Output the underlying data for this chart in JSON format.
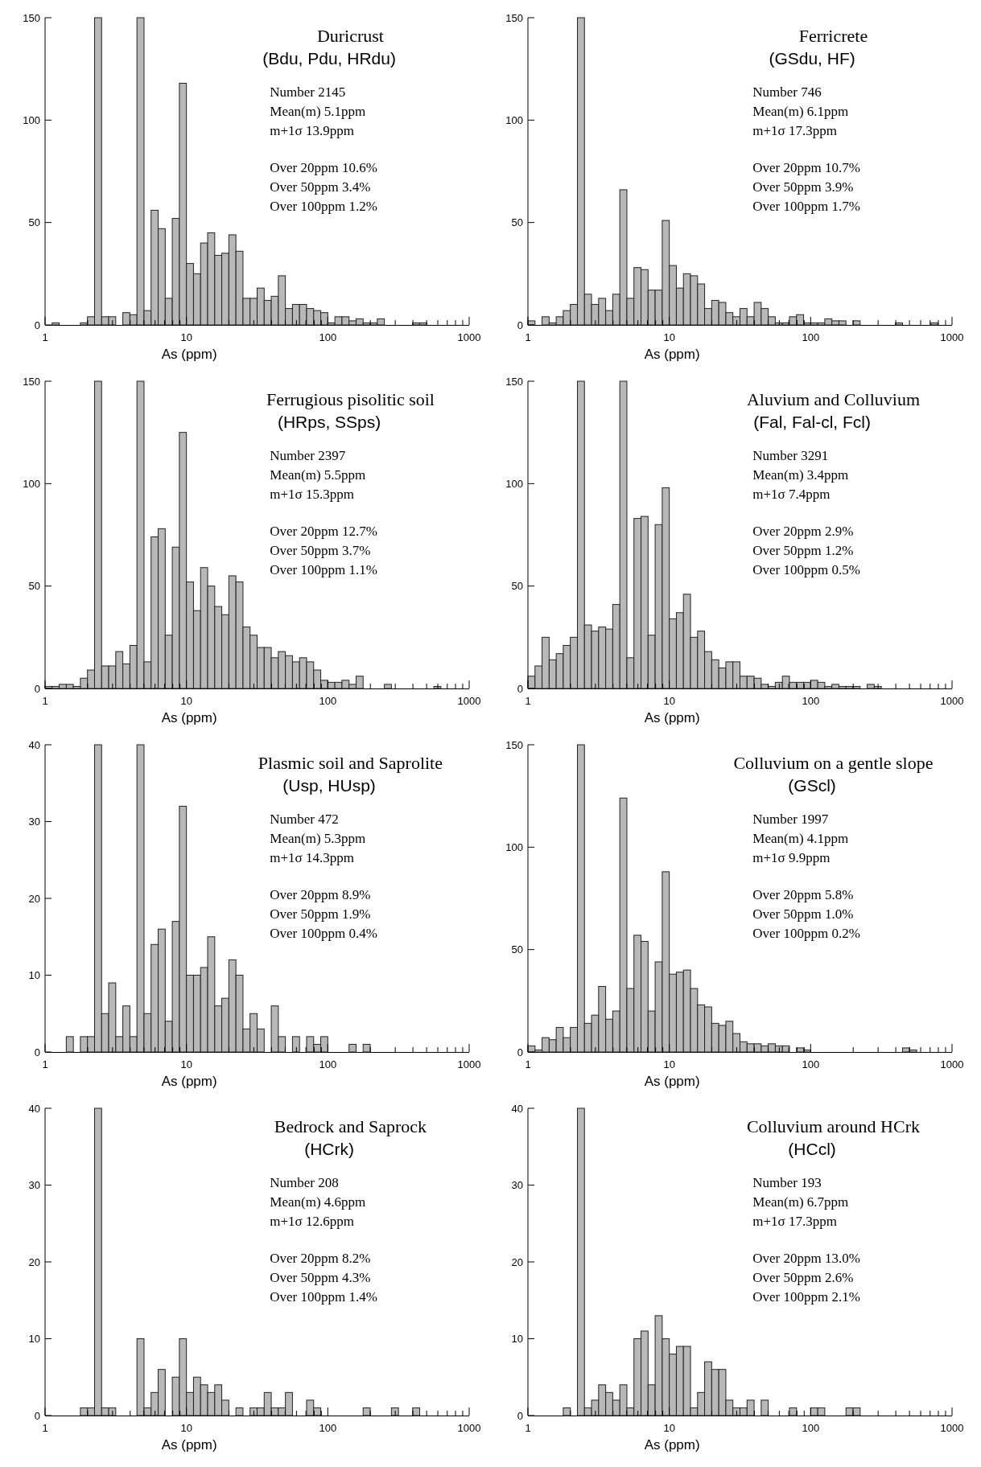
{
  "chart_data": [
    {
      "type": "histogram",
      "title": "Duricrust",
      "subtitle": "(Bdu, Pdu, HRdu)",
      "xlabel": "As (ppm)",
      "log": "x",
      "color": "#b8b8b8",
      "xlim": [
        1,
        1000
      ],
      "ylim": [
        0,
        150
      ],
      "yticks": [
        0,
        50,
        100,
        150
      ],
      "xticks": [
        1,
        {
          "value": 2,
          "label": null
        },
        {
          "value": 3,
          "label": null
        },
        {
          "value": 4,
          "label": null
        },
        {
          "value": 5,
          "label": null
        },
        {
          "value": 6,
          "label": null
        },
        {
          "value": 7,
          "label": null
        },
        {
          "value": 8,
          "label": null
        },
        {
          "value": 9,
          "label": null
        },
        10,
        {
          "value": 20,
          "label": null
        },
        {
          "value": 30,
          "label": null
        },
        {
          "value": 40,
          "label": null
        },
        {
          "value": 50,
          "label": null
        },
        {
          "value": 60,
          "label": null
        },
        {
          "value": 70,
          "label": null
        },
        {
          "value": 80,
          "label": null
        },
        {
          "value": 90,
          "label": null
        },
        100,
        {
          "value": 200,
          "label": null
        },
        {
          "value": 300,
          "label": null
        },
        {
          "value": 400,
          "label": null
        },
        {
          "value": 500,
          "label": null
        },
        {
          "value": 600,
          "label": null
        },
        {
          "value": 700,
          "label": null
        },
        {
          "value": 800,
          "label": null
        },
        {
          "value": 900,
          "label": null
        },
        1000
      ],
      "annotations": [
        "Number 2145",
        "Mean(m) 5.1ppm",
        "m+1σ 13.9ppm",
        "Over 20ppm 10.6%",
        "Over 50ppm 3.4%",
        "Over 100ppm 1.2%"
      ],
      "bins": [
        1,
        1.122,
        1.259,
        1.413,
        1.585,
        1.778,
        1.995,
        2.239,
        2.512,
        2.818,
        3.162,
        3.548,
        3.981,
        4.467,
        5.012,
        5.623,
        6.31,
        7.079,
        7.943,
        8.913,
        10,
        11.22,
        12.59,
        14.13,
        15.85,
        17.78,
        19.95,
        22.39,
        25.12,
        28.18,
        31.62,
        35.48,
        39.81,
        44.67,
        50.12,
        56.23,
        63.1,
        70.79,
        79.43,
        89.13,
        100,
        112.2,
        125.9,
        141.3,
        158.5,
        177.8,
        199.5,
        223.9,
        251.2,
        281.8,
        316.2,
        354.8,
        398.1,
        446.7,
        501.2,
        562.3,
        631,
        707.9,
        794.3,
        891.3,
        1000
      ],
      "values": [
        0,
        1,
        0,
        0,
        0,
        1,
        4,
        150,
        4,
        4,
        0,
        6,
        5,
        150,
        7,
        56,
        47,
        13,
        52,
        118,
        30,
        25,
        40,
        45,
        34,
        35,
        44,
        36,
        13,
        13,
        18,
        12,
        14,
        24,
        8,
        10,
        10,
        8,
        7,
        6,
        1,
        4,
        4,
        2,
        3,
        1,
        1,
        3,
        0,
        0,
        0,
        0,
        1,
        1,
        0,
        0,
        0,
        0,
        0,
        0
      ]
    },
    {
      "type": "histogram",
      "title": "Ferricrete",
      "subtitle": "(GSdu, HF)",
      "xlabel": "As (ppm)",
      "log": "x",
      "color": "#b8b8b8",
      "xlim": [
        1,
        1000
      ],
      "ylim": [
        0,
        150
      ],
      "yticks": [
        0,
        50,
        100,
        150
      ],
      "xticks": [
        1,
        {
          "value": 2,
          "label": null
        },
        {
          "value": 3,
          "label": null
        },
        {
          "value": 4,
          "label": null
        },
        {
          "value": 5,
          "label": null
        },
        {
          "value": 6,
          "label": null
        },
        {
          "value": 7,
          "label": null
        },
        {
          "value": 8,
          "label": null
        },
        {
          "value": 9,
          "label": null
        },
        10,
        {
          "value": 20,
          "label": null
        },
        {
          "value": 30,
          "label": null
        },
        {
          "value": 40,
          "label": null
        },
        {
          "value": 50,
          "label": null
        },
        {
          "value": 60,
          "label": null
        },
        {
          "value": 70,
          "label": null
        },
        {
          "value": 80,
          "label": null
        },
        {
          "value": 90,
          "label": null
        },
        100,
        {
          "value": 200,
          "label": null
        },
        {
          "value": 300,
          "label": null
        },
        {
          "value": 400,
          "label": null
        },
        {
          "value": 500,
          "label": null
        },
        {
          "value": 600,
          "label": null
        },
        {
          "value": 700,
          "label": null
        },
        {
          "value": 800,
          "label": null
        },
        {
          "value": 900,
          "label": null
        },
        1000
      ],
      "annotations": [
        "Number 746",
        "Mean(m) 6.1ppm",
        "m+1σ 17.3ppm",
        "Over 20ppm 10.7%",
        "Over 50ppm 3.9%",
        "Over 100ppm 1.7%"
      ],
      "bins": [
        1,
        1.122,
        1.259,
        1.413,
        1.585,
        1.778,
        1.995,
        2.239,
        2.512,
        2.818,
        3.162,
        3.548,
        3.981,
        4.467,
        5.012,
        5.623,
        6.31,
        7.079,
        7.943,
        8.913,
        10,
        11.22,
        12.59,
        14.13,
        15.85,
        17.78,
        19.95,
        22.39,
        25.12,
        28.18,
        31.62,
        35.48,
        39.81,
        44.67,
        50.12,
        56.23,
        63.1,
        70.79,
        79.43,
        89.13,
        100,
        112.2,
        125.9,
        141.3,
        158.5,
        177.8,
        199.5,
        223.9,
        251.2,
        281.8,
        316.2,
        354.8,
        398.1,
        446.7,
        501.2,
        562.3,
        631,
        707.9,
        794.3,
        891.3,
        1000
      ],
      "values": [
        2,
        0,
        4,
        1,
        4,
        7,
        10,
        150,
        15,
        10,
        13,
        7,
        15,
        66,
        13,
        28,
        27,
        17,
        17,
        51,
        29,
        18,
        25,
        24,
        20,
        8,
        12,
        11,
        6,
        4,
        8,
        4,
        11,
        8,
        4,
        1,
        1,
        4,
        5,
        1,
        1,
        1,
        3,
        2,
        2,
        0,
        2,
        0,
        0,
        0,
        0,
        0,
        1,
        0,
        0,
        0,
        0,
        1,
        0,
        0
      ]
    },
    {
      "type": "histogram",
      "title": "Ferrugious pisolitic soil",
      "subtitle": "(HRps, SSps)",
      "xlabel": "As (ppm)",
      "log": "x",
      "color": "#b8b8b8",
      "xlim": [
        1,
        1000
      ],
      "ylim": [
        0,
        150
      ],
      "yticks": [
        0,
        50,
        100,
        150
      ],
      "xticks": [
        1,
        {
          "value": 2,
          "label": null
        },
        {
          "value": 3,
          "label": null
        },
        {
          "value": 4,
          "label": null
        },
        {
          "value": 5,
          "label": null
        },
        {
          "value": 6,
          "label": null
        },
        {
          "value": 7,
          "label": null
        },
        {
          "value": 8,
          "label": null
        },
        {
          "value": 9,
          "label": null
        },
        10,
        {
          "value": 20,
          "label": null
        },
        {
          "value": 30,
          "label": null
        },
        {
          "value": 40,
          "label": null
        },
        {
          "value": 50,
          "label": null
        },
        {
          "value": 60,
          "label": null
        },
        {
          "value": 70,
          "label": null
        },
        {
          "value": 80,
          "label": null
        },
        {
          "value": 90,
          "label": null
        },
        100,
        {
          "value": 200,
          "label": null
        },
        {
          "value": 300,
          "label": null
        },
        {
          "value": 400,
          "label": null
        },
        {
          "value": 500,
          "label": null
        },
        {
          "value": 600,
          "label": null
        },
        {
          "value": 700,
          "label": null
        },
        {
          "value": 800,
          "label": null
        },
        {
          "value": 900,
          "label": null
        },
        1000
      ],
      "annotations": [
        "Number 2397",
        "Mean(m) 5.5ppm",
        "m+1σ 15.3ppm",
        "Over 20ppm 12.7%",
        "Over 50ppm 3.7%",
        "Over 100ppm 1.1%"
      ],
      "bins": [
        1,
        1.122,
        1.259,
        1.413,
        1.585,
        1.778,
        1.995,
        2.239,
        2.512,
        2.818,
        3.162,
        3.548,
        3.981,
        4.467,
        5.012,
        5.623,
        6.31,
        7.079,
        7.943,
        8.913,
        10,
        11.22,
        12.59,
        14.13,
        15.85,
        17.78,
        19.95,
        22.39,
        25.12,
        28.18,
        31.62,
        35.48,
        39.81,
        44.67,
        50.12,
        56.23,
        63.1,
        70.79,
        79.43,
        89.13,
        100,
        112.2,
        125.9,
        141.3,
        158.5,
        177.8,
        199.5,
        223.9,
        251.2,
        281.8,
        316.2,
        354.8,
        398.1,
        446.7,
        501.2,
        562.3,
        631,
        707.9,
        794.3,
        891.3,
        1000
      ],
      "values": [
        1,
        1,
        2,
        2,
        1,
        5,
        9,
        150,
        11,
        11,
        18,
        12,
        21,
        150,
        13,
        74,
        78,
        26,
        69,
        125,
        52,
        38,
        59,
        50,
        40,
        36,
        55,
        52,
        30,
        26,
        20,
        20,
        15,
        18,
        16,
        13,
        15,
        13,
        9,
        4,
        3,
        3,
        4,
        2,
        6,
        0,
        0,
        0,
        2,
        0,
        0,
        0,
        0,
        0,
        0,
        1,
        0,
        0,
        0,
        0
      ]
    },
    {
      "type": "histogram",
      "title": "Aluvium and Colluvium",
      "subtitle": "(Fal, Fal-cl, Fcl)",
      "xlabel": "As (ppm)",
      "log": "x",
      "color": "#b8b8b8",
      "xlim": [
        1,
        1000
      ],
      "ylim": [
        0,
        150
      ],
      "yticks": [
        0,
        50,
        100,
        150
      ],
      "xticks": [
        1,
        {
          "value": 2,
          "label": null
        },
        {
          "value": 3,
          "label": null
        },
        {
          "value": 4,
          "label": null
        },
        {
          "value": 5,
          "label": null
        },
        {
          "value": 6,
          "label": null
        },
        {
          "value": 7,
          "label": null
        },
        {
          "value": 8,
          "label": null
        },
        {
          "value": 9,
          "label": null
        },
        10,
        {
          "value": 20,
          "label": null
        },
        {
          "value": 30,
          "label": null
        },
        {
          "value": 40,
          "label": null
        },
        {
          "value": 50,
          "label": null
        },
        {
          "value": 60,
          "label": null
        },
        {
          "value": 70,
          "label": null
        },
        {
          "value": 80,
          "label": null
        },
        {
          "value": 90,
          "label": null
        },
        100,
        {
          "value": 200,
          "label": null
        },
        {
          "value": 300,
          "label": null
        },
        {
          "value": 400,
          "label": null
        },
        {
          "value": 500,
          "label": null
        },
        {
          "value": 600,
          "label": null
        },
        {
          "value": 700,
          "label": null
        },
        {
          "value": 800,
          "label": null
        },
        {
          "value": 900,
          "label": null
        },
        1000
      ],
      "annotations": [
        "Number 3291",
        "Mean(m) 3.4ppm",
        "m+1σ 7.4ppm",
        "Over 20ppm 2.9%",
        "Over 50ppm 1.2%",
        "Over 100ppm 0.5%"
      ],
      "bins": [
        1,
        1.122,
        1.259,
        1.413,
        1.585,
        1.778,
        1.995,
        2.239,
        2.512,
        2.818,
        3.162,
        3.548,
        3.981,
        4.467,
        5.012,
        5.623,
        6.31,
        7.079,
        7.943,
        8.913,
        10,
        11.22,
        12.59,
        14.13,
        15.85,
        17.78,
        19.95,
        22.39,
        25.12,
        28.18,
        31.62,
        35.48,
        39.81,
        44.67,
        50.12,
        56.23,
        63.1,
        70.79,
        79.43,
        89.13,
        100,
        112.2,
        125.9,
        141.3,
        158.5,
        177.8,
        199.5,
        223.9,
        251.2,
        281.8,
        316.2,
        354.8,
        398.1,
        446.7,
        501.2,
        562.3,
        631,
        707.9,
        794.3,
        891.3,
        1000
      ],
      "values": [
        6,
        11,
        25,
        14,
        17,
        21,
        25,
        150,
        31,
        28,
        30,
        29,
        41,
        150,
        15,
        83,
        84,
        26,
        80,
        98,
        34,
        37,
        46,
        25,
        28,
        18,
        14,
        10,
        13,
        13,
        6,
        6,
        5,
        2,
        1,
        3,
        6,
        3,
        3,
        3,
        4,
        3,
        1,
        2,
        1,
        1,
        1,
        0,
        2,
        1,
        0,
        0,
        0,
        0,
        0,
        0,
        0,
        0,
        0,
        0
      ]
    },
    {
      "type": "histogram",
      "title": "Plasmic soil and Saprolite",
      "subtitle": "(Usp, HUsp)",
      "xlabel": "As (ppm)",
      "log": "x",
      "color": "#b8b8b8",
      "xlim": [
        1,
        1000
      ],
      "ylim": [
        0,
        40
      ],
      "yticks": [
        0,
        10,
        20,
        30,
        40
      ],
      "xticks": [
        1,
        {
          "value": 2,
          "label": null
        },
        {
          "value": 3,
          "label": null
        },
        {
          "value": 4,
          "label": null
        },
        {
          "value": 5,
          "label": null
        },
        {
          "value": 6,
          "label": null
        },
        {
          "value": 7,
          "label": null
        },
        {
          "value": 8,
          "label": null
        },
        {
          "value": 9,
          "label": null
        },
        10,
        {
          "value": 20,
          "label": null
        },
        {
          "value": 30,
          "label": null
        },
        {
          "value": 40,
          "label": null
        },
        {
          "value": 50,
          "label": null
        },
        {
          "value": 60,
          "label": null
        },
        {
          "value": 70,
          "label": null
        },
        {
          "value": 80,
          "label": null
        },
        {
          "value": 90,
          "label": null
        },
        100,
        {
          "value": 200,
          "label": null
        },
        {
          "value": 300,
          "label": null
        },
        {
          "value": 400,
          "label": null
        },
        {
          "value": 500,
          "label": null
        },
        {
          "value": 600,
          "label": null
        },
        {
          "value": 700,
          "label": null
        },
        {
          "value": 800,
          "label": null
        },
        {
          "value": 900,
          "label": null
        },
        1000
      ],
      "annotations": [
        "Number 472",
        "Mean(m) 5.3ppm",
        "m+1σ 14.3ppm",
        "Over 20ppm 8.9%",
        "Over 50ppm 1.9%",
        "Over 100ppm 0.4%"
      ],
      "bins": [
        1,
        1.122,
        1.259,
        1.413,
        1.585,
        1.778,
        1.995,
        2.239,
        2.512,
        2.818,
        3.162,
        3.548,
        3.981,
        4.467,
        5.012,
        5.623,
        6.31,
        7.079,
        7.943,
        8.913,
        10,
        11.22,
        12.59,
        14.13,
        15.85,
        17.78,
        19.95,
        22.39,
        25.12,
        28.18,
        31.62,
        35.48,
        39.81,
        44.67,
        50.12,
        56.23,
        63.1,
        70.79,
        79.43,
        89.13,
        100,
        112.2,
        125.9,
        141.3,
        158.5,
        177.8,
        199.5,
        223.9,
        251.2,
        281.8,
        316.2,
        354.8,
        398.1,
        446.7,
        501.2,
        562.3,
        631,
        707.9,
        794.3,
        891.3,
        1000
      ],
      "values": [
        0,
        0,
        0,
        2,
        0,
        2,
        2,
        40,
        5,
        9,
        2,
        6,
        2,
        40,
        5,
        14,
        16,
        4,
        17,
        32,
        10,
        10,
        11,
        15,
        6,
        7,
        12,
        10,
        3,
        5,
        3,
        0,
        6,
        2,
        0,
        2,
        0,
        2,
        1,
        2,
        0,
        0,
        0,
        1,
        0,
        1,
        0,
        0,
        0,
        0,
        0,
        0,
        0,
        0,
        0,
        0,
        0,
        0,
        0,
        0
      ]
    },
    {
      "type": "histogram",
      "title": "Colluvium on a gentle slope",
      "subtitle": "(GScl)",
      "xlabel": "As (ppm)",
      "log": "x",
      "color": "#b8b8b8",
      "xlim": [
        1,
        1000
      ],
      "ylim": [
        0,
        150
      ],
      "yticks": [
        0,
        50,
        100,
        150
      ],
      "xticks": [
        1,
        {
          "value": 2,
          "label": null
        },
        {
          "value": 3,
          "label": null
        },
        {
          "value": 4,
          "label": null
        },
        {
          "value": 5,
          "label": null
        },
        {
          "value": 6,
          "label": null
        },
        {
          "value": 7,
          "label": null
        },
        {
          "value": 8,
          "label": null
        },
        {
          "value": 9,
          "label": null
        },
        10,
        {
          "value": 20,
          "label": null
        },
        {
          "value": 30,
          "label": null
        },
        {
          "value": 40,
          "label": null
        },
        {
          "value": 50,
          "label": null
        },
        {
          "value": 60,
          "label": null
        },
        {
          "value": 70,
          "label": null
        },
        {
          "value": 80,
          "label": null
        },
        {
          "value": 90,
          "label": null
        },
        100,
        {
          "value": 200,
          "label": null
        },
        {
          "value": 300,
          "label": null
        },
        {
          "value": 400,
          "label": null
        },
        {
          "value": 500,
          "label": null
        },
        {
          "value": 600,
          "label": null
        },
        {
          "value": 700,
          "label": null
        },
        {
          "value": 800,
          "label": null
        },
        {
          "value": 900,
          "label": null
        },
        1000
      ],
      "annotations": [
        "Number 1997",
        "Mean(m) 4.1ppm",
        "m+1σ 9.9ppm",
        "Over 20ppm 5.8%",
        "Over 50ppm 1.0%",
        "Over 100ppm 0.2%"
      ],
      "bins": [
        1,
        1.122,
        1.259,
        1.413,
        1.585,
        1.778,
        1.995,
        2.239,
        2.512,
        2.818,
        3.162,
        3.548,
        3.981,
        4.467,
        5.012,
        5.623,
        6.31,
        7.079,
        7.943,
        8.913,
        10,
        11.22,
        12.59,
        14.13,
        15.85,
        17.78,
        19.95,
        22.39,
        25.12,
        28.18,
        31.62,
        35.48,
        39.81,
        44.67,
        50.12,
        56.23,
        63.1,
        70.79,
        79.43,
        89.13,
        100,
        112.2,
        125.9,
        141.3,
        158.5,
        177.8,
        199.5,
        223.9,
        251.2,
        281.8,
        316.2,
        354.8,
        398.1,
        446.7,
        501.2,
        562.3,
        631,
        707.9,
        794.3,
        891.3,
        1000
      ],
      "values": [
        3,
        1,
        7,
        6,
        12,
        7,
        12,
        150,
        14,
        18,
        32,
        16,
        20,
        124,
        31,
        57,
        54,
        20,
        44,
        88,
        38,
        39,
        40,
        31,
        23,
        22,
        14,
        13,
        15,
        9,
        5,
        4,
        4,
        3,
        4,
        3,
        3,
        0,
        2,
        1,
        0,
        0,
        0,
        0,
        0,
        0,
        0,
        0,
        0,
        0,
        0,
        0,
        0,
        2,
        1,
        0,
        0,
        0,
        0,
        0
      ]
    },
    {
      "type": "histogram",
      "title": "Bedrock and Saprock",
      "subtitle": "(HCrk)",
      "xlabel": "As (ppm)",
      "log": "x",
      "color": "#b8b8b8",
      "xlim": [
        1,
        1000
      ],
      "ylim": [
        0,
        40
      ],
      "yticks": [
        0,
        10,
        20,
        30,
        40
      ],
      "xticks": [
        1,
        {
          "value": 2,
          "label": null
        },
        {
          "value": 3,
          "label": null
        },
        {
          "value": 4,
          "label": null
        },
        {
          "value": 5,
          "label": null
        },
        {
          "value": 6,
          "label": null
        },
        {
          "value": 7,
          "label": null
        },
        {
          "value": 8,
          "label": null
        },
        {
          "value": 9,
          "label": null
        },
        10,
        {
          "value": 20,
          "label": null
        },
        {
          "value": 30,
          "label": null
        },
        {
          "value": 40,
          "label": null
        },
        {
          "value": 50,
          "label": null
        },
        {
          "value": 60,
          "label": null
        },
        {
          "value": 70,
          "label": null
        },
        {
          "value": 80,
          "label": null
        },
        {
          "value": 90,
          "label": null
        },
        100,
        {
          "value": 200,
          "label": null
        },
        {
          "value": 300,
          "label": null
        },
        {
          "value": 400,
          "label": null
        },
        {
          "value": 500,
          "label": null
        },
        {
          "value": 600,
          "label": null
        },
        {
          "value": 700,
          "label": null
        },
        {
          "value": 800,
          "label": null
        },
        {
          "value": 900,
          "label": null
        },
        1000
      ],
      "annotations": [
        "Number 208",
        "Mean(m) 4.6ppm",
        "m+1σ 12.6ppm",
        "Over 20ppm 8.2%",
        "Over 50ppm 4.3%",
        "Over 100ppm 1.4%"
      ],
      "bins": [
        1,
        1.122,
        1.259,
        1.413,
        1.585,
        1.778,
        1.995,
        2.239,
        2.512,
        2.818,
        3.162,
        3.548,
        3.981,
        4.467,
        5.012,
        5.623,
        6.31,
        7.079,
        7.943,
        8.913,
        10,
        11.22,
        12.59,
        14.13,
        15.85,
        17.78,
        19.95,
        22.39,
        25.12,
        28.18,
        31.62,
        35.48,
        39.81,
        44.67,
        50.12,
        56.23,
        63.1,
        70.79,
        79.43,
        89.13,
        100,
        112.2,
        125.9,
        141.3,
        158.5,
        177.8,
        199.5,
        223.9,
        251.2,
        281.8,
        316.2,
        354.8,
        398.1,
        446.7,
        501.2,
        562.3,
        631,
        707.9,
        794.3,
        891.3,
        1000
      ],
      "values": [
        0,
        0,
        0,
        0,
        0,
        1,
        1,
        40,
        1,
        1,
        0,
        0,
        0,
        10,
        1,
        3,
        6,
        0,
        5,
        10,
        3,
        5,
        4,
        3,
        4,
        2,
        0,
        1,
        0,
        1,
        1,
        3,
        1,
        1,
        3,
        0,
        0,
        2,
        1,
        0,
        0,
        0,
        0,
        0,
        0,
        1,
        0,
        0,
        0,
        1,
        0,
        0,
        1,
        0,
        0,
        0,
        0,
        0,
        0,
        0
      ]
    },
    {
      "type": "histogram",
      "title": "Colluvium around HCrk",
      "subtitle": "(HCcl)",
      "xlabel": "As (ppm)",
      "log": "x",
      "color": "#b8b8b8",
      "xlim": [
        1,
        1000
      ],
      "ylim": [
        0,
        40
      ],
      "yticks": [
        0,
        10,
        20,
        30,
        40
      ],
      "xticks": [
        1,
        {
          "value": 2,
          "label": null
        },
        {
          "value": 3,
          "label": null
        },
        {
          "value": 4,
          "label": null
        },
        {
          "value": 5,
          "label": null
        },
        {
          "value": 6,
          "label": null
        },
        {
          "value": 7,
          "label": null
        },
        {
          "value": 8,
          "label": null
        },
        {
          "value": 9,
          "label": null
        },
        10,
        {
          "value": 20,
          "label": null
        },
        {
          "value": 30,
          "label": null
        },
        {
          "value": 40,
          "label": null
        },
        {
          "value": 50,
          "label": null
        },
        {
          "value": 60,
          "label": null
        },
        {
          "value": 70,
          "label": null
        },
        {
          "value": 80,
          "label": null
        },
        {
          "value": 90,
          "label": null
        },
        100,
        {
          "value": 200,
          "label": null
        },
        {
          "value": 300,
          "label": null
        },
        {
          "value": 400,
          "label": null
        },
        {
          "value": 500,
          "label": null
        },
        {
          "value": 600,
          "label": null
        },
        {
          "value": 700,
          "label": null
        },
        {
          "value": 800,
          "label": null
        },
        {
          "value": 900,
          "label": null
        },
        1000
      ],
      "annotations": [
        "Number 193",
        "Mean(m) 6.7ppm",
        "m+1σ 17.3ppm",
        "Over 20ppm 13.0%",
        "Over 50ppm 2.6%",
        "Over 100ppm 2.1%"
      ],
      "bins": [
        1,
        1.122,
        1.259,
        1.413,
        1.585,
        1.778,
        1.995,
        2.239,
        2.512,
        2.818,
        3.162,
        3.548,
        3.981,
        4.467,
        5.012,
        5.623,
        6.31,
        7.079,
        7.943,
        8.913,
        10,
        11.22,
        12.59,
        14.13,
        15.85,
        17.78,
        19.95,
        22.39,
        25.12,
        28.18,
        31.62,
        35.48,
        39.81,
        44.67,
        50.12,
        56.23,
        63.1,
        70.79,
        79.43,
        89.13,
        100,
        112.2,
        125.9,
        141.3,
        158.5,
        177.8,
        199.5,
        223.9,
        251.2,
        281.8,
        316.2,
        354.8,
        398.1,
        446.7,
        501.2,
        562.3,
        631,
        707.9,
        794.3,
        891.3,
        1000
      ],
      "values": [
        0,
        0,
        0,
        0,
        0,
        1,
        0,
        40,
        1,
        2,
        4,
        3,
        2,
        4,
        1,
        10,
        11,
        4,
        13,
        10,
        8,
        9,
        9,
        1,
        3,
        7,
        6,
        6,
        2,
        1,
        1,
        2,
        0,
        2,
        0,
        0,
        0,
        1,
        0,
        0,
        1,
        1,
        0,
        0,
        0,
        1,
        1,
        0,
        0,
        0,
        0,
        0,
        0,
        0,
        0,
        0,
        0,
        0,
        0,
        0
      ]
    }
  ]
}
